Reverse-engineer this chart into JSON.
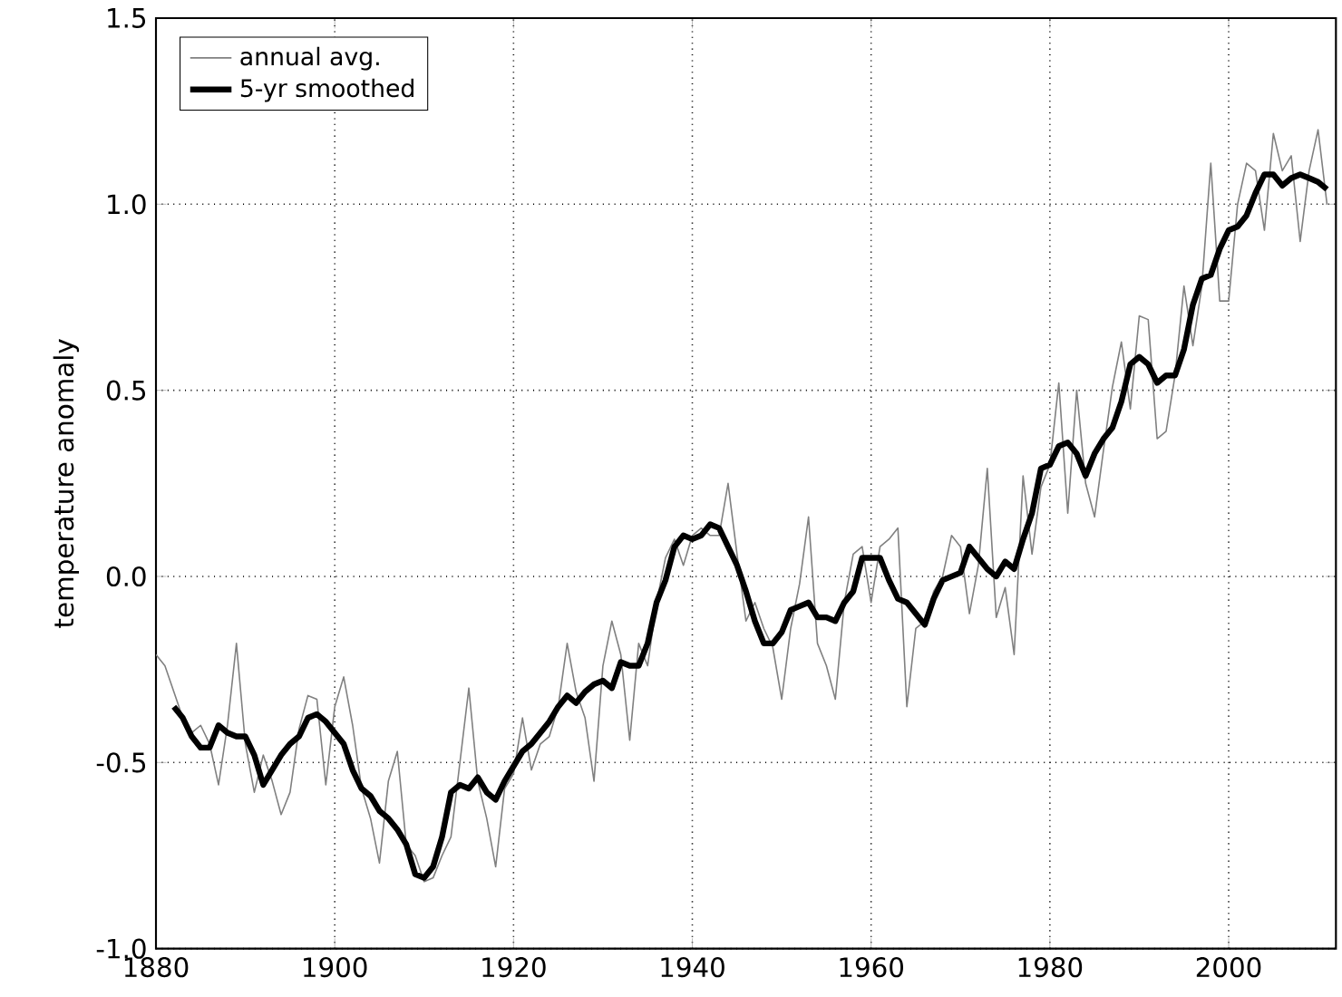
{
  "chart_data": {
    "type": "line",
    "ylabel": "temperature anomaly",
    "xlim": [
      1880,
      2012
    ],
    "ylim": [
      -1.0,
      1.5
    ],
    "xticks": [
      1880,
      1900,
      1920,
      1940,
      1960,
      1980,
      2000
    ],
    "yticks": [
      {
        "value": -1.0,
        "label": "-1.0"
      },
      {
        "value": -0.5,
        "label": "-0.5"
      },
      {
        "value": 0.0,
        "label": "0.0"
      },
      {
        "value": 0.5,
        "label": "0.5"
      },
      {
        "value": 1.0,
        "label": "1.0"
      },
      {
        "value": 1.5,
        "label": "1.5"
      }
    ],
    "grid": true,
    "legend": "top left",
    "line_style": "solid",
    "marker": "none",
    "series": [
      {
        "name": "annual avg.",
        "color": "#808080",
        "x": [
          1880,
          1881,
          1882,
          1883,
          1884,
          1885,
          1886,
          1887,
          1888,
          1889,
          1890,
          1891,
          1892,
          1893,
          1894,
          1895,
          1896,
          1897,
          1898,
          1899,
          1900,
          1901,
          1902,
          1903,
          1904,
          1905,
          1906,
          1907,
          1908,
          1909,
          1910,
          1911,
          1912,
          1913,
          1914,
          1915,
          1916,
          1917,
          1918,
          1919,
          1920,
          1921,
          1922,
          1923,
          1924,
          1925,
          1926,
          1927,
          1928,
          1929,
          1930,
          1931,
          1932,
          1933,
          1934,
          1935,
          1936,
          1937,
          1938,
          1939,
          1940,
          1941,
          1942,
          1943,
          1944,
          1945,
          1946,
          1947,
          1948,
          1949,
          1950,
          1951,
          1952,
          1953,
          1954,
          1955,
          1956,
          1957,
          1958,
          1959,
          1960,
          1961,
          1962,
          1963,
          1964,
          1965,
          1966,
          1967,
          1968,
          1969,
          1970,
          1971,
          1972,
          1973,
          1974,
          1975,
          1976,
          1977,
          1978,
          1979,
          1980,
          1981,
          1982,
          1983,
          1984,
          1985,
          1986,
          1987,
          1988,
          1989,
          1990,
          1991,
          1992,
          1993,
          1994,
          1995,
          1996,
          1997,
          1998,
          1999,
          2000,
          2001,
          2002,
          2003,
          2004,
          2005,
          2006,
          2007,
          2008,
          2009,
          2010,
          2011
        ],
        "values": [
          -0.21,
          -0.24,
          -0.31,
          -0.38,
          -0.42,
          -0.4,
          -0.45,
          -0.56,
          -0.4,
          -0.18,
          -0.45,
          -0.58,
          -0.48,
          -0.55,
          -0.64,
          -0.58,
          -0.41,
          -0.32,
          -0.33,
          -0.56,
          -0.35,
          -0.27,
          -0.4,
          -0.57,
          -0.65,
          -0.77,
          -0.55,
          -0.47,
          -0.72,
          -0.75,
          -0.82,
          -0.81,
          -0.75,
          -0.7,
          -0.5,
          -0.3,
          -0.55,
          -0.65,
          -0.78,
          -0.57,
          -0.53,
          -0.38,
          -0.52,
          -0.45,
          -0.43,
          -0.35,
          -0.18,
          -0.31,
          -0.38,
          -0.55,
          -0.24,
          -0.12,
          -0.21,
          -0.44,
          -0.18,
          -0.24,
          -0.07,
          0.05,
          0.1,
          0.03,
          0.11,
          0.13,
          0.11,
          0.11,
          0.25,
          0.06,
          -0.12,
          -0.07,
          -0.14,
          -0.19,
          -0.33,
          -0.14,
          -0.02,
          0.16,
          -0.18,
          -0.24,
          -0.33,
          -0.07,
          0.06,
          0.08,
          -0.07,
          0.08,
          0.1,
          0.13,
          -0.35,
          -0.14,
          -0.12,
          -0.04,
          0.0,
          0.11,
          0.08,
          -0.1,
          0.03,
          0.29,
          -0.11,
          -0.03,
          -0.21,
          0.27,
          0.06,
          0.24,
          0.3,
          0.52,
          0.17,
          0.5,
          0.25,
          0.16,
          0.34,
          0.51,
          0.63,
          0.45,
          0.7,
          0.69,
          0.37,
          0.39,
          0.54,
          0.78,
          0.62,
          0.78,
          1.11,
          0.74,
          0.74,
          1.0,
          1.11,
          1.09,
          0.93,
          1.19,
          1.09,
          1.13,
          0.9,
          1.09,
          1.2,
          1.0
        ]
      },
      {
        "name": "5-yr smoothed",
        "color": "#000000",
        "x": [
          1882,
          1883,
          1884,
          1885,
          1886,
          1887,
          1888,
          1889,
          1890,
          1891,
          1892,
          1893,
          1894,
          1895,
          1896,
          1897,
          1898,
          1899,
          1900,
          1901,
          1902,
          1903,
          1904,
          1905,
          1906,
          1907,
          1908,
          1909,
          1910,
          1911,
          1912,
          1913,
          1914,
          1915,
          1916,
          1917,
          1918,
          1919,
          1920,
          1921,
          1922,
          1923,
          1924,
          1925,
          1926,
          1927,
          1928,
          1929,
          1930,
          1931,
          1932,
          1933,
          1934,
          1935,
          1936,
          1937,
          1938,
          1939,
          1940,
          1941,
          1942,
          1943,
          1944,
          1945,
          1946,
          1947,
          1948,
          1949,
          1950,
          1951,
          1952,
          1953,
          1954,
          1955,
          1956,
          1957,
          1958,
          1959,
          1960,
          1961,
          1962,
          1963,
          1964,
          1965,
          1966,
          1967,
          1968,
          1969,
          1970,
          1971,
          1972,
          1973,
          1974,
          1975,
          1976,
          1977,
          1978,
          1979,
          1980,
          1981,
          1982,
          1983,
          1984,
          1985,
          1986,
          1987,
          1988,
          1989,
          1990,
          1991,
          1992,
          1993,
          1994,
          1995,
          1996,
          1997,
          1998,
          1999,
          2000,
          2001,
          2002,
          2003,
          2004,
          2005,
          2006,
          2007,
          2008,
          2009,
          2010,
          2011
        ],
        "values": [
          -0.35,
          -0.38,
          -0.43,
          -0.46,
          -0.46,
          -0.4,
          -0.42,
          -0.43,
          -0.43,
          -0.48,
          -0.56,
          -0.52,
          -0.48,
          -0.45,
          -0.43,
          -0.38,
          -0.37,
          -0.39,
          -0.42,
          -0.45,
          -0.52,
          -0.57,
          -0.59,
          -0.63,
          -0.65,
          -0.68,
          -0.72,
          -0.8,
          -0.81,
          -0.78,
          -0.7,
          -0.58,
          -0.56,
          -0.57,
          -0.54,
          -0.58,
          -0.6,
          -0.55,
          -0.51,
          -0.47,
          -0.45,
          -0.42,
          -0.39,
          -0.35,
          -0.32,
          -0.34,
          -0.31,
          -0.29,
          -0.28,
          -0.3,
          -0.23,
          -0.24,
          -0.24,
          -0.18,
          -0.07,
          -0.01,
          0.08,
          0.11,
          0.1,
          0.11,
          0.14,
          0.13,
          0.08,
          0.03,
          -0.04,
          -0.12,
          -0.18,
          -0.18,
          -0.15,
          -0.09,
          -0.08,
          -0.07,
          -0.11,
          -0.11,
          -0.12,
          -0.07,
          -0.04,
          0.05,
          0.05,
          0.05,
          -0.01,
          -0.06,
          -0.07,
          -0.1,
          -0.13,
          -0.06,
          -0.01,
          0.0,
          0.01,
          0.08,
          0.05,
          0.02,
          0.0,
          0.04,
          0.02,
          0.1,
          0.17,
          0.29,
          0.3,
          0.35,
          0.36,
          0.33,
          0.27,
          0.33,
          0.37,
          0.4,
          0.47,
          0.57,
          0.59,
          0.57,
          0.52,
          0.54,
          0.54,
          0.61,
          0.73,
          0.8,
          0.81,
          0.88,
          0.93,
          0.94,
          0.97,
          1.03,
          1.08,
          1.08,
          1.05,
          1.07,
          1.08,
          1.07,
          1.06,
          1.04
        ]
      }
    ]
  }
}
